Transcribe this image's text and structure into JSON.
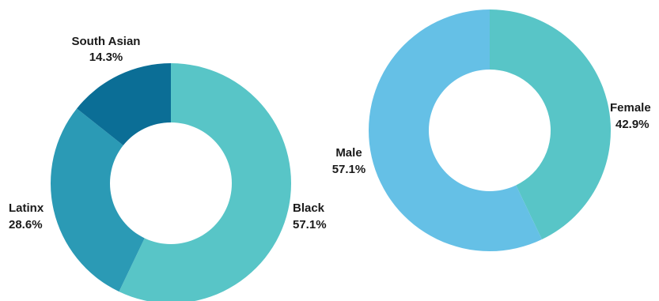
{
  "chart_data": [
    {
      "type": "pie",
      "donut": true,
      "slices": [
        {
          "label": "Black",
          "value_label": "57.1%",
          "value": 57.1,
          "color": "#58c5c7"
        },
        {
          "label": "Latinx",
          "value_label": "28.6%",
          "value": 28.6,
          "color": "#2b9ab5"
        },
        {
          "label": "South Asian",
          "value_label": "14.3%",
          "value": 14.3,
          "color": "#0b6e96"
        }
      ]
    },
    {
      "type": "pie",
      "donut": true,
      "slices": [
        {
          "label": "Female",
          "value_label": "42.9%",
          "value": 42.9,
          "color": "#58c5c7"
        },
        {
          "label": "Male",
          "value_label": "57.1%",
          "value": 57.1,
          "color": "#65c0e6"
        }
      ]
    }
  ]
}
